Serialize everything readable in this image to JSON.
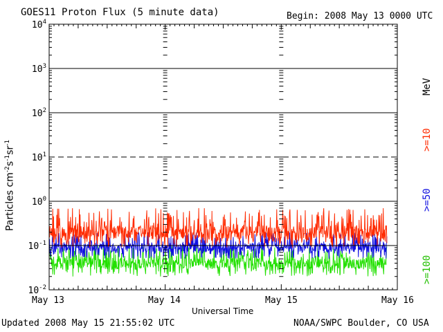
{
  "header": {
    "title": "GOES11 Proton Flux (5 minute data)",
    "begin": "Begin: 2008 May 13 0000 UTC"
  },
  "footer": {
    "updated": "Updated 2008 May 15 21:55:02 UTC",
    "credit": "NOAA/SWPC Boulder, CO USA"
  },
  "chart_data": {
    "type": "line",
    "title": "GOES11 Proton Flux (5 minute data)",
    "xlabel": "Universal Time",
    "ylabel": "Particles cm-2 s-1 sr-1",
    "yscale": "log",
    "ylim": [
      0.01,
      10000
    ],
    "xlim_days": [
      0,
      3
    ],
    "x_tick_labels": [
      "May 13",
      "May 14",
      "May 15",
      "May 16"
    ],
    "y_tick_labels": [
      "10-2",
      "10-1",
      "100",
      "101",
      "102",
      "103",
      "104"
    ],
    "units_label": "MeV",
    "grid": true,
    "series": [
      {
        "name": ">=10",
        "color": "#ff2a00",
        "typical": 0.2,
        "min": 0.09,
        "max": 0.7
      },
      {
        "name": ">=50",
        "color": "#1010e0",
        "typical": 0.09,
        "min": 0.05,
        "max": 0.2
      },
      {
        "name": ">=100",
        "color": "#22e000",
        "typical": 0.04,
        "min": 0.02,
        "max": 0.1
      }
    ],
    "data_end_day": 2.91
  }
}
